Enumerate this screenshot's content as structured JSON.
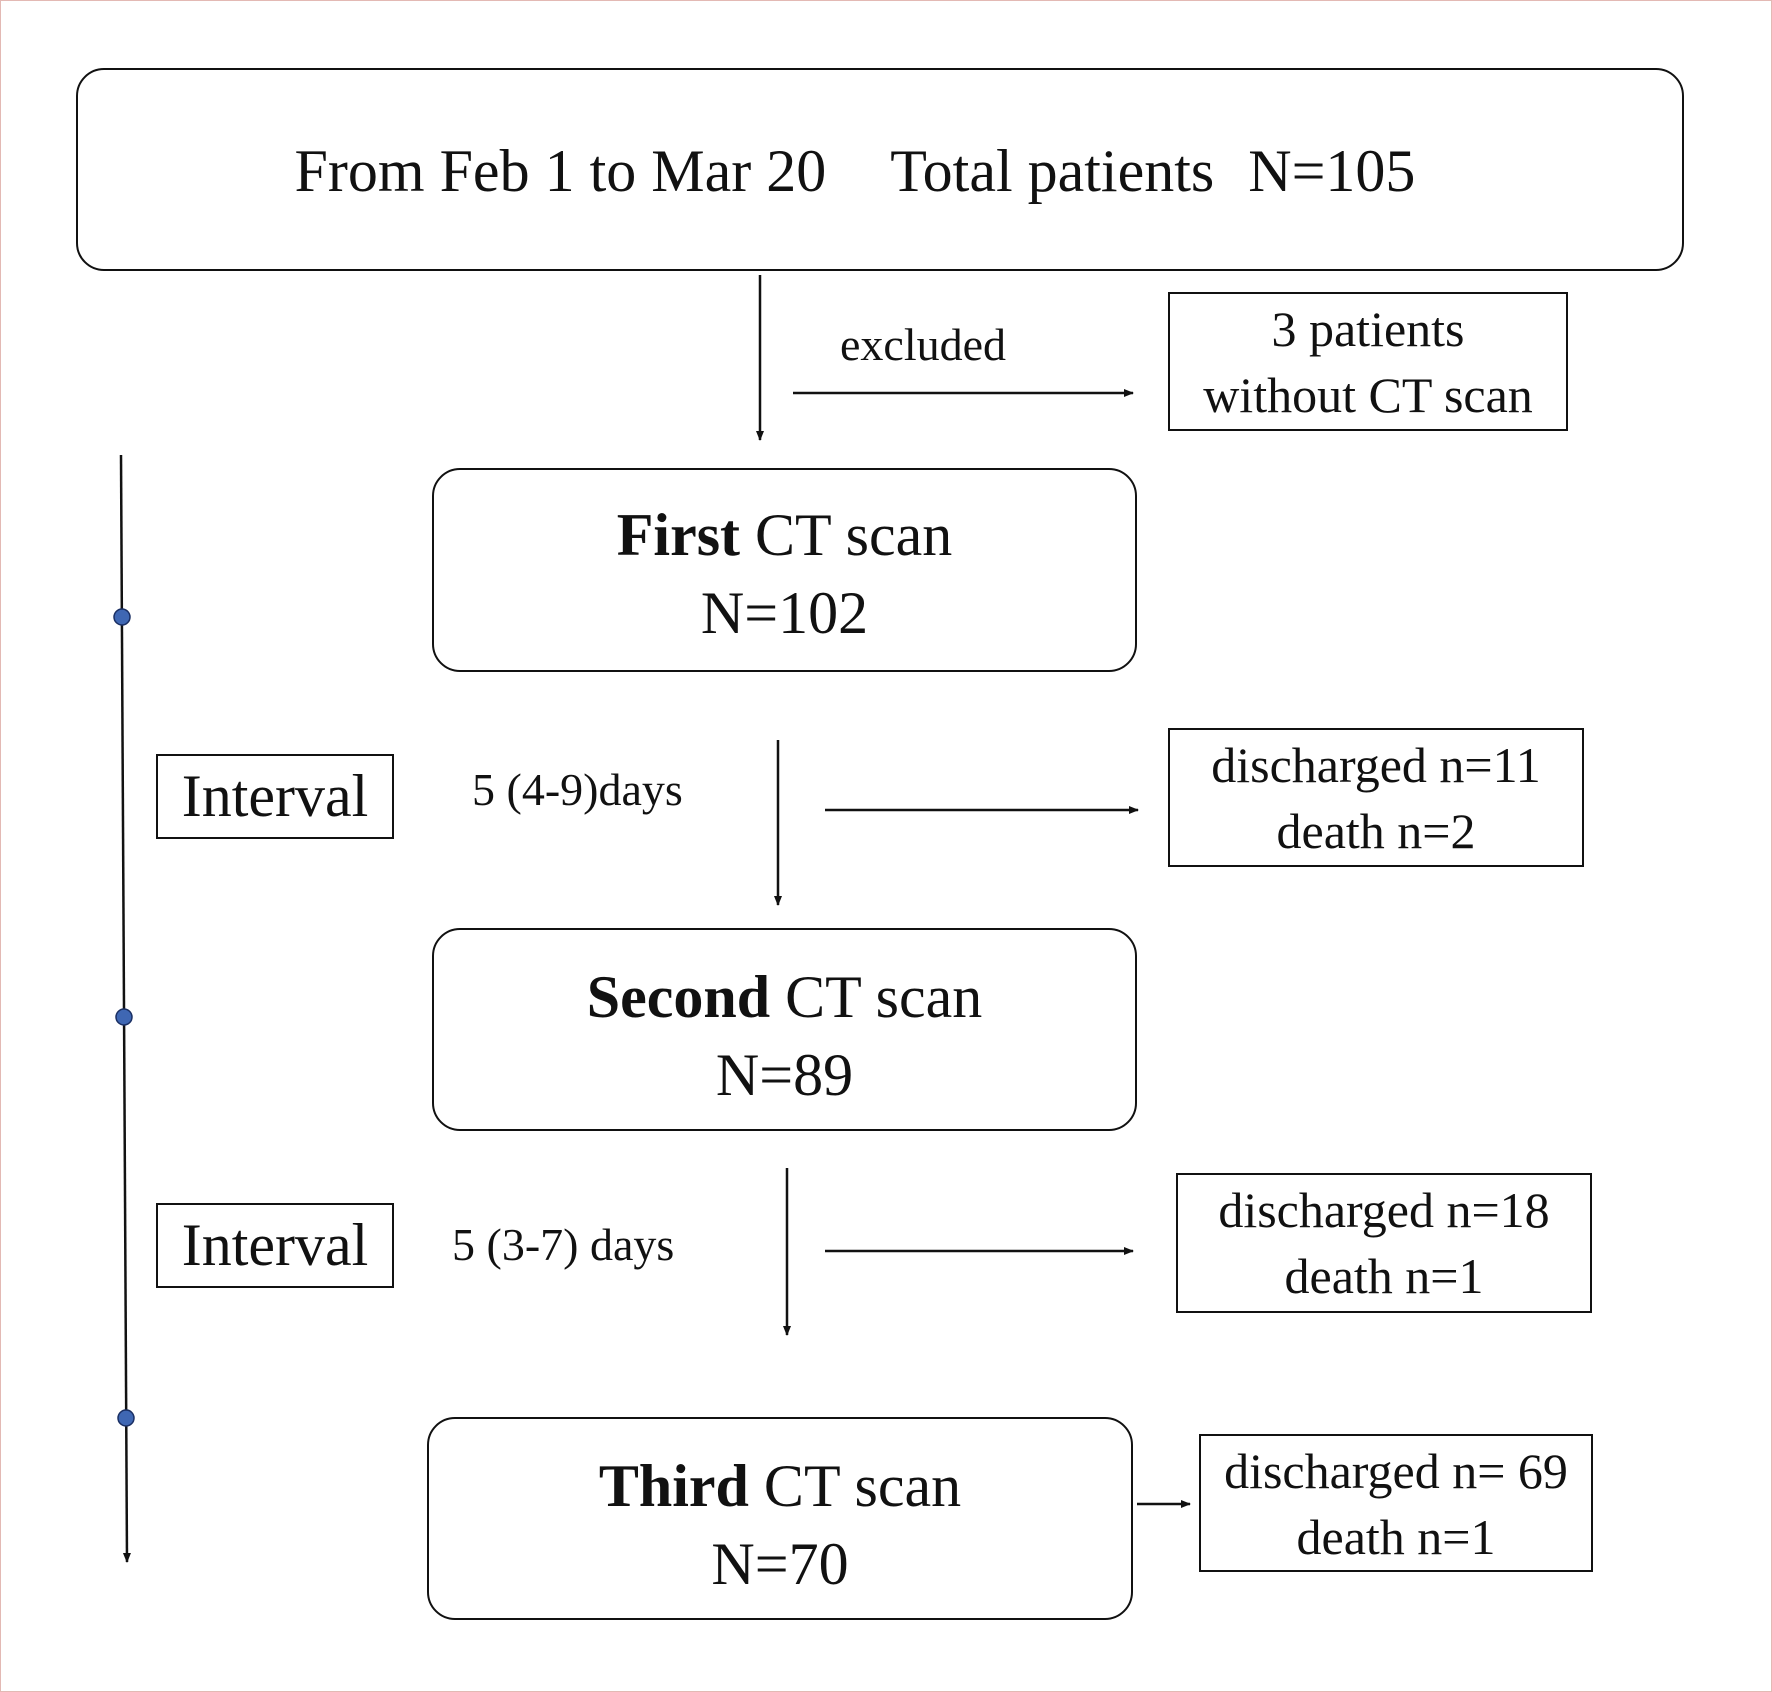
{
  "top_box": {
    "date_range": "From Feb 1 to Mar 20",
    "total_label": "Total patients",
    "total_value": "N=105"
  },
  "exclusion": {
    "label": "excluded",
    "box_line1": "3 patients",
    "box_line2": "without CT scan"
  },
  "scans": [
    {
      "bold": "First",
      "rest": " CT scan",
      "n": "N=102"
    },
    {
      "bold": "Second",
      "rest": " CT scan",
      "n": "N=89"
    },
    {
      "bold": "Third",
      "rest": " CT scan",
      "n": "N=70"
    }
  ],
  "intervals": [
    {
      "label": "Interval",
      "duration": "5 (4-9)days"
    },
    {
      "label": "Interval",
      "duration": "5 (3-7) days"
    }
  ],
  "outcomes": [
    {
      "discharged": "discharged n=11",
      "death": "death n=2"
    },
    {
      "discharged": "discharged n=18",
      "death": "death n=1"
    },
    {
      "discharged": "discharged n= 69",
      "death": "death n=1"
    }
  ],
  "colors": {
    "timeline_dot": "#3f67b3",
    "stroke": "#111111"
  }
}
